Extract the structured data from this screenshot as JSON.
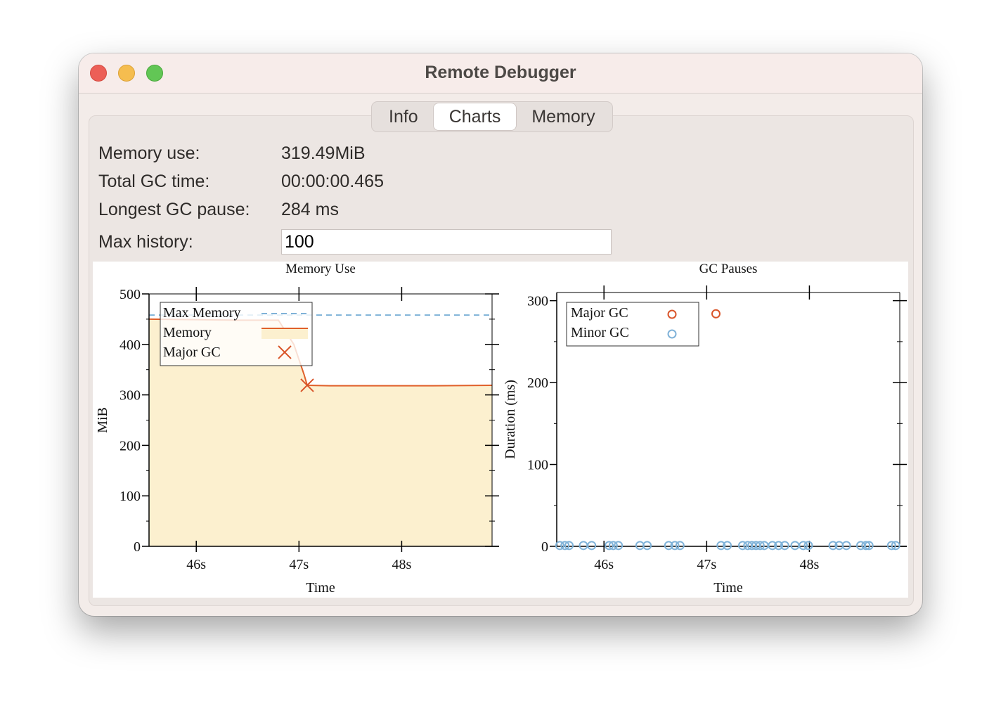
{
  "window": {
    "title": "Remote Debugger"
  },
  "tabs": [
    {
      "label": "Info",
      "active": false
    },
    {
      "label": "Charts",
      "active": true
    },
    {
      "label": "Memory",
      "active": false
    }
  ],
  "stats": {
    "memory_use_label": "Memory use:",
    "memory_use_value": "319.49MiB",
    "gc_time_label": "Total GC time:",
    "gc_time_value": "00:00:00.465",
    "gc_pause_label": "Longest GC pause:",
    "gc_pause_value": "284 ms",
    "max_history_label": "Max history:",
    "max_history_value": "100"
  },
  "colors": {
    "memory_line": "#e0602a",
    "memory_fill": "#fcf0cf",
    "max_memory": "#7fb2d8",
    "major_gc": "#d9552a",
    "minor_gc": "#7fb2d8"
  },
  "chart_data": [
    {
      "type": "area",
      "title": "Memory Use",
      "xlabel": "Time",
      "ylabel": "MiB",
      "xlim": [
        45.54,
        48.88
      ],
      "ylim": [
        0,
        500
      ],
      "xticks": [
        46,
        47,
        48
      ],
      "xtick_labels": [
        "46s",
        "47s",
        "48s"
      ],
      "yticks": [
        0,
        100,
        200,
        300,
        400,
        500
      ],
      "legend": [
        "Max Memory",
        "Memory",
        "Major GC"
      ],
      "legend_position": "top-left",
      "series": [
        {
          "name": "Max Memory",
          "style": "dashed",
          "x": [
            45.54,
            48.88
          ],
          "y": [
            458,
            458
          ]
        },
        {
          "name": "Memory",
          "style": "line+fill",
          "x": [
            45.54,
            46.0,
            46.4,
            46.8,
            46.95,
            47.05,
            47.08,
            47.3,
            47.8,
            48.3,
            48.88
          ],
          "y": [
            450,
            449,
            448,
            448,
            400,
            340,
            319,
            318,
            318,
            318,
            319
          ]
        },
        {
          "name": "Major GC",
          "style": "x-marker",
          "x": [
            47.08
          ],
          "y": [
            319
          ]
        }
      ]
    },
    {
      "type": "scatter",
      "title": "GC Pauses",
      "xlabel": "Time",
      "ylabel": "Duration (ms)",
      "xlim": [
        45.54,
        48.88
      ],
      "ylim": [
        0,
        310
      ],
      "xticks": [
        46,
        47,
        48
      ],
      "xtick_labels": [
        "46s",
        "47s",
        "48s"
      ],
      "yticks": [
        0,
        100,
        200,
        300
      ],
      "legend": [
        "Major GC",
        "Minor GC"
      ],
      "legend_position": "top-left",
      "series": [
        {
          "name": "Major GC",
          "x": [
            47.09
          ],
          "y": [
            284
          ]
        },
        {
          "name": "Minor GC",
          "x": [
            45.57,
            45.62,
            45.66,
            45.8,
            45.88,
            46.05,
            46.09,
            46.14,
            46.35,
            46.42,
            46.63,
            46.69,
            46.74,
            47.14,
            47.2,
            47.35,
            47.4,
            47.44,
            47.48,
            47.52,
            47.56,
            47.64,
            47.7,
            47.76,
            47.86,
            47.94,
            47.99,
            48.23,
            48.29,
            48.36,
            48.5,
            48.55,
            48.58,
            48.8,
            48.84
          ],
          "y": [
            1,
            1,
            1,
            1,
            1,
            1,
            1,
            1,
            1,
            1,
            1,
            1,
            1,
            1,
            1,
            1,
            1,
            1,
            1,
            1,
            1,
            1,
            1,
            1,
            1,
            1,
            1,
            1,
            1,
            1,
            1,
            1,
            1,
            1,
            1
          ]
        }
      ]
    }
  ]
}
